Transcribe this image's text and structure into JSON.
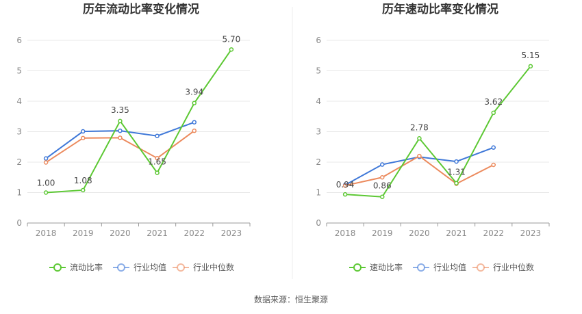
{
  "source": "数据来源：恒生聚源",
  "chart_data": [
    {
      "type": "line",
      "title": "历年流动比率变化情况",
      "xlabel": "",
      "ylabel": "",
      "categories": [
        "2018",
        "2019",
        "2020",
        "2021",
        "2022",
        "2023"
      ],
      "ylim": [
        0,
        6
      ],
      "yticks": [
        "0",
        "1",
        "2",
        "3",
        "4",
        "5",
        "6"
      ],
      "grid": true,
      "legend": "bottom",
      "series": [
        {
          "name": "流动比率",
          "color": "#5cc833",
          "values": [
            1.0,
            1.08,
            3.35,
            1.65,
            3.94,
            5.7
          ],
          "labels": [
            "1.00",
            "1.08",
            "3.35",
            "1.65",
            "3.94",
            "5.70"
          ]
        },
        {
          "name": "行业均值",
          "color": "#3f78d8",
          "values": [
            2.12,
            3.01,
            3.03,
            2.86,
            3.31,
            null
          ]
        },
        {
          "name": "行业中位数",
          "color": "#ec8a5d",
          "values": [
            1.99,
            2.79,
            2.8,
            2.13,
            3.03,
            null
          ]
        }
      ]
    },
    {
      "type": "line",
      "title": "历年速动比率变化情况",
      "xlabel": "",
      "ylabel": "",
      "categories": [
        "2018",
        "2019",
        "2020",
        "2021",
        "2022",
        "2023"
      ],
      "ylim": [
        0,
        6
      ],
      "yticks": [
        "0",
        "1",
        "2",
        "3",
        "4",
        "5",
        "6"
      ],
      "grid": true,
      "legend": "bottom",
      "series": [
        {
          "name": "速动比率",
          "color": "#5cc833",
          "values": [
            0.94,
            0.86,
            2.78,
            1.31,
            3.62,
            5.15
          ],
          "labels": [
            "0.94",
            "0.86",
            "2.78",
            "1.31",
            "3.62",
            "5.15"
          ]
        },
        {
          "name": "行业均值",
          "color": "#3f78d8",
          "values": [
            1.25,
            1.92,
            2.17,
            2.02,
            2.48,
            null
          ]
        },
        {
          "name": "行业中位数",
          "color": "#ec8a5d",
          "values": [
            1.23,
            1.5,
            2.2,
            1.29,
            1.91,
            null
          ]
        }
      ]
    }
  ]
}
